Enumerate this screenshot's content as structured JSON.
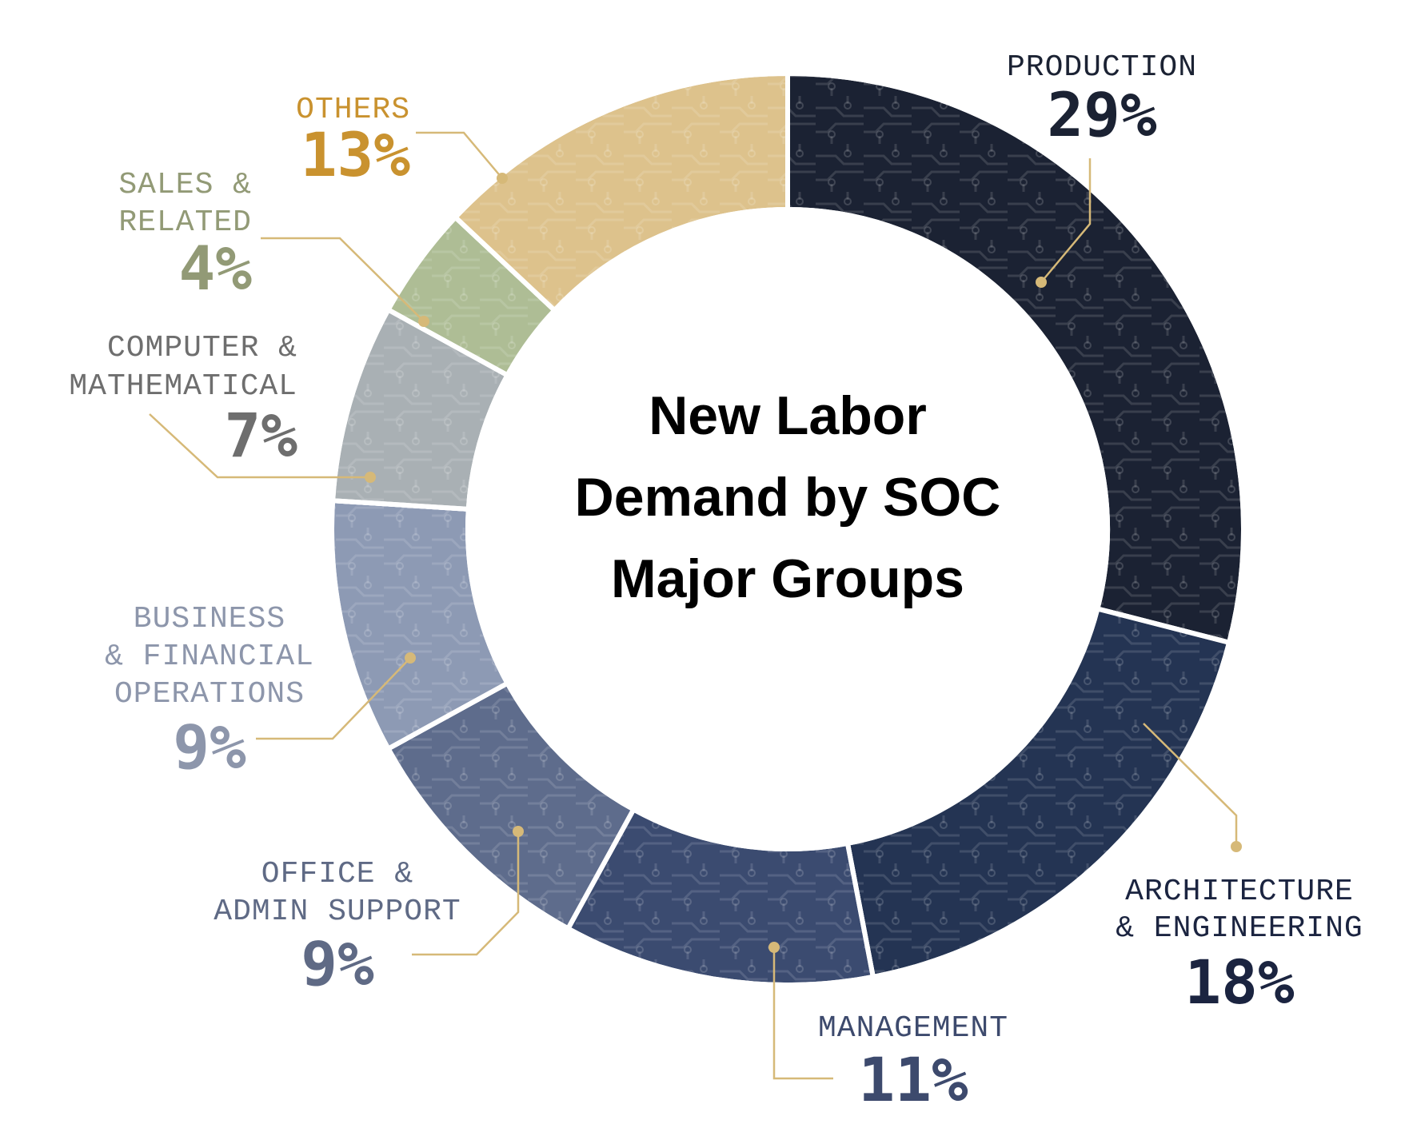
{
  "chart_data": {
    "type": "pie",
    "title": [
      "New Labor",
      "Demand by SOC",
      "Major Groups"
    ],
    "slices": [
      {
        "label": [
          "PRODUCTION"
        ],
        "value": 29,
        "value_label": "29%",
        "color": "#1b2233",
        "text_color": "#1b2233"
      },
      {
        "label": [
          "ARCHITECTURE",
          "& ENGINEERING"
        ],
        "value": 18,
        "value_label": "18%",
        "color": "#243453",
        "text_color": "#1b2440"
      },
      {
        "label": [
          "MANAGEMENT"
        ],
        "value": 11,
        "value_label": "11%",
        "color": "#3b4b70",
        "text_color": "#3d4a6d"
      },
      {
        "label": [
          "OFFICE &",
          "ADMIN SUPPORT"
        ],
        "value": 9,
        "value_label": "9%",
        "color": "#5e6c8c",
        "text_color": "#5f6a85"
      },
      {
        "label": [
          "BUSINESS",
          "& FINANCIAL",
          "OPERATIONS"
        ],
        "value": 9,
        "value_label": "9%",
        "color": "#8d9ab4",
        "text_color": "#8d96ab"
      },
      {
        "label": [
          "COMPUTER &",
          "MATHEMATICAL"
        ],
        "value": 7,
        "value_label": "7%",
        "color": "#a9b0b4",
        "text_color": "#6e6e6e"
      },
      {
        "label": [
          "SALES &",
          "RELATED"
        ],
        "value": 4,
        "value_label": "4%",
        "color": "#aebd95",
        "text_color": "#929a76"
      },
      {
        "label": [
          "OTHERS"
        ],
        "value": 13,
        "value_label": "13%",
        "color": "#ddc28c",
        "text_color": "#c9922f"
      }
    ],
    "leader_color": "#d6b978"
  }
}
